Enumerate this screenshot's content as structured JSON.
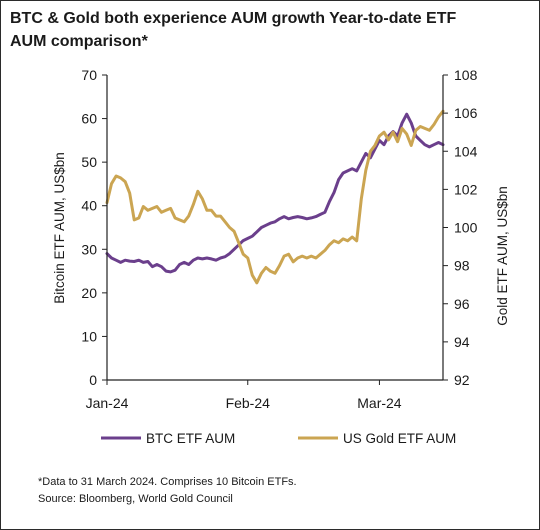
{
  "title": "BTC & Gold both experience AUM growth Year-to-date ETF AUM comparison*",
  "footnote": "*Data to 31 March 2024. Comprises 10 Bitcoin ETFs.",
  "source": "Source: Bloomberg, World Gold Council",
  "colors": {
    "btc": "#6b3f8c",
    "gold": "#cba552",
    "axis": "#222222"
  },
  "chart_data": {
    "type": "line",
    "title": "BTC & Gold both experience AUM growth Year-to-date ETF AUM comparison*",
    "x_tick_labels": [
      "Jan-24",
      "Feb-24",
      "Mar-24"
    ],
    "x_tick_days": [
      0,
      31,
      60
    ],
    "x_range_days": [
      0,
      74
    ],
    "ylabel": "Bitcoin ETF AUM, US$bn",
    "ylim": [
      0,
      70
    ],
    "yticks": [
      0,
      10,
      20,
      30,
      40,
      50,
      60,
      70
    ],
    "y2label": "Gold ETF AUM, US$bn",
    "y2lim": [
      92,
      108
    ],
    "y2ticks": [
      92,
      94,
      96,
      98,
      100,
      102,
      104,
      106,
      108
    ],
    "legend_position": "bottom",
    "series": [
      {
        "name": "BTC ETF AUM",
        "axis": "left",
        "points": [
          [
            0,
            29
          ],
          [
            1,
            28
          ],
          [
            2,
            27.5
          ],
          [
            3,
            27
          ],
          [
            4,
            27.5
          ],
          [
            5,
            27.3
          ],
          [
            6,
            27.2
          ],
          [
            7,
            27.5
          ],
          [
            8,
            27
          ],
          [
            9,
            27.2
          ],
          [
            10,
            26
          ],
          [
            11,
            26.5
          ],
          [
            12,
            26
          ],
          [
            13,
            25
          ],
          [
            14,
            24.8
          ],
          [
            15,
            25.2
          ],
          [
            16,
            26.5
          ],
          [
            17,
            27
          ],
          [
            18,
            26.5
          ],
          [
            19,
            27.5
          ],
          [
            20,
            28
          ],
          [
            21,
            27.8
          ],
          [
            22,
            28
          ],
          [
            23,
            27.8
          ],
          [
            24,
            27.5
          ],
          [
            25,
            28
          ],
          [
            26,
            28.3
          ],
          [
            27,
            29
          ],
          [
            28,
            30
          ],
          [
            29,
            31
          ],
          [
            30,
            32
          ],
          [
            31,
            32.5
          ],
          [
            32,
            33
          ],
          [
            33,
            34
          ],
          [
            34,
            35
          ],
          [
            35,
            35.5
          ],
          [
            36,
            36
          ],
          [
            37,
            36.3
          ],
          [
            38,
            37
          ],
          [
            39,
            37.5
          ],
          [
            40,
            37
          ],
          [
            41,
            37.3
          ],
          [
            42,
            37.5
          ],
          [
            43,
            37.3
          ],
          [
            44,
            37
          ],
          [
            45,
            37.2
          ],
          [
            46,
            37.5
          ],
          [
            47,
            38
          ],
          [
            48,
            38.5
          ],
          [
            49,
            41
          ],
          [
            50,
            43
          ],
          [
            51,
            46
          ],
          [
            52,
            47.5
          ],
          [
            53,
            48
          ],
          [
            54,
            48.5
          ],
          [
            55,
            48
          ],
          [
            56,
            50
          ],
          [
            57,
            52
          ],
          [
            58,
            51
          ],
          [
            59,
            53
          ],
          [
            60,
            55
          ],
          [
            61,
            54
          ],
          [
            62,
            56
          ],
          [
            63,
            57
          ],
          [
            64,
            56
          ],
          [
            65,
            59
          ],
          [
            66,
            61
          ],
          [
            67,
            59
          ],
          [
            68,
            56
          ],
          [
            69,
            55
          ],
          [
            70,
            54
          ],
          [
            71,
            53.5
          ],
          [
            72,
            54
          ],
          [
            73,
            54.5
          ],
          [
            74,
            54
          ]
        ]
      },
      {
        "name": "US Gold ETF AUM",
        "axis": "right",
        "points": [
          [
            0,
            101.3
          ],
          [
            1,
            102.3
          ],
          [
            2,
            102.7
          ],
          [
            3,
            102.6
          ],
          [
            4,
            102.4
          ],
          [
            5,
            101.8
          ],
          [
            6,
            100.4
          ],
          [
            7,
            100.5
          ],
          [
            8,
            101.1
          ],
          [
            9,
            100.9
          ],
          [
            10,
            101.0
          ],
          [
            11,
            101.1
          ],
          [
            12,
            100.8
          ],
          [
            13,
            100.9
          ],
          [
            14,
            101.0
          ],
          [
            15,
            100.5
          ],
          [
            16,
            100.4
          ],
          [
            17,
            100.3
          ],
          [
            18,
            100.6
          ],
          [
            19,
            101.2
          ],
          [
            20,
            101.9
          ],
          [
            21,
            101.5
          ],
          [
            22,
            100.9
          ],
          [
            23,
            100.9
          ],
          [
            24,
            100.6
          ],
          [
            25,
            100.6
          ],
          [
            26,
            100.3
          ],
          [
            27,
            100.0
          ],
          [
            28,
            99.8
          ],
          [
            29,
            99.2
          ],
          [
            30,
            98.6
          ],
          [
            31,
            98.4
          ],
          [
            32,
            97.5
          ],
          [
            33,
            97.1
          ],
          [
            34,
            97.6
          ],
          [
            35,
            97.9
          ],
          [
            36,
            97.7
          ],
          [
            37,
            97.6
          ],
          [
            38,
            98.0
          ],
          [
            39,
            98.5
          ],
          [
            40,
            98.6
          ],
          [
            41,
            98.2
          ],
          [
            42,
            98.4
          ],
          [
            43,
            98.5
          ],
          [
            44,
            98.4
          ],
          [
            45,
            98.5
          ],
          [
            46,
            98.4
          ],
          [
            47,
            98.6
          ],
          [
            48,
            98.8
          ],
          [
            49,
            99.1
          ],
          [
            50,
            99.3
          ],
          [
            51,
            99.2
          ],
          [
            52,
            99.4
          ],
          [
            53,
            99.3
          ],
          [
            54,
            99.5
          ],
          [
            55,
            99.3
          ],
          [
            56,
            101.5
          ],
          [
            57,
            103.0
          ],
          [
            58,
            104.0
          ],
          [
            59,
            104.3
          ],
          [
            60,
            104.8
          ],
          [
            61,
            105.0
          ],
          [
            62,
            104.6
          ],
          [
            63,
            105.0
          ],
          [
            64,
            104.5
          ],
          [
            65,
            105.2
          ],
          [
            66,
            104.9
          ],
          [
            67,
            104.3
          ],
          [
            68,
            105.1
          ],
          [
            69,
            105.3
          ],
          [
            70,
            105.2
          ],
          [
            71,
            105.1
          ],
          [
            72,
            105.4
          ],
          [
            73,
            105.8
          ],
          [
            74,
            106.1
          ]
        ]
      }
    ]
  }
}
